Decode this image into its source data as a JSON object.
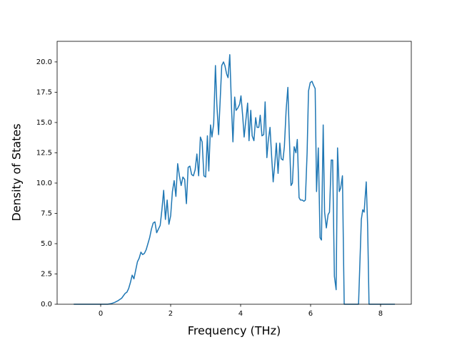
{
  "chart_data": {
    "type": "line",
    "xlabel": "Frequency (THz)",
    "ylabel": "Density of States",
    "color": "#1f77b4",
    "xlim": [
      -1.245,
      8.878
    ],
    "ylim": [
      0,
      21.7
    ],
    "xticks": [
      0,
      2,
      4,
      6,
      8
    ],
    "yticks": [
      {
        "value": 0,
        "label": "0.0"
      },
      {
        "value": 2.5,
        "label": "2.5"
      },
      {
        "value": 5,
        "label": "5.0"
      },
      {
        "value": 7.5,
        "label": "7.5"
      },
      {
        "value": 10,
        "label": "10.0"
      },
      {
        "value": 12.5,
        "label": "12.5"
      },
      {
        "value": 15,
        "label": "15.0"
      },
      {
        "value": 17.5,
        "label": "17.5"
      },
      {
        "value": 20,
        "label": "20.0"
      }
    ],
    "x": [
      -0.77,
      0.2,
      0.3,
      0.4,
      0.5,
      0.6,
      0.7,
      0.75,
      0.8,
      0.85,
      0.9,
      0.95,
      1.0,
      1.05,
      1.1,
      1.15,
      1.2,
      1.25,
      1.3,
      1.35,
      1.4,
      1.45,
      1.5,
      1.55,
      1.6,
      1.65,
      1.7,
      1.75,
      1.8,
      1.85,
      1.9,
      1.95,
      2.0,
      2.05,
      2.1,
      2.15,
      2.2,
      2.25,
      2.3,
      2.35,
      2.4,
      2.45,
      2.5,
      2.55,
      2.6,
      2.65,
      2.7,
      2.75,
      2.8,
      2.85,
      2.9,
      2.95,
      3.0,
      3.05,
      3.09,
      3.14,
      3.18,
      3.23,
      3.28,
      3.32,
      3.37,
      3.41,
      3.46,
      3.51,
      3.55,
      3.6,
      3.64,
      3.69,
      3.74,
      3.78,
      3.83,
      3.87,
      3.92,
      3.97,
      4.01,
      4.06,
      4.1,
      4.15,
      4.2,
      4.24,
      4.29,
      4.33,
      4.38,
      4.43,
      4.47,
      4.52,
      4.56,
      4.61,
      4.66,
      4.7,
      4.75,
      4.79,
      4.84,
      4.89,
      4.93,
      4.98,
      5.02,
      5.07,
      5.12,
      5.16,
      5.21,
      5.25,
      5.3,
      5.35,
      5.39,
      5.44,
      5.48,
      5.53,
      5.58,
      5.62,
      5.67,
      5.71,
      5.76,
      5.81,
      5.85,
      5.9,
      5.94,
      5.99,
      6.04,
      6.08,
      6.13,
      6.17,
      6.22,
      6.27,
      6.31,
      6.36,
      6.4,
      6.45,
      6.5,
      6.54,
      6.59,
      6.63,
      6.68,
      6.73,
      6.77,
      6.82,
      6.86,
      6.91,
      6.96,
      7.37,
      7.45,
      7.49,
      7.53,
      7.59,
      7.63,
      7.67,
      8.41
    ],
    "values": [
      0,
      0,
      0.05,
      0.15,
      0.3,
      0.5,
      0.9,
      1.0,
      1.3,
      1.8,
      2.4,
      2.1,
      2.8,
      3.5,
      3.8,
      4.3,
      4.1,
      4.2,
      4.5,
      5.0,
      5.5,
      6.2,
      6.7,
      6.8,
      5.9,
      6.2,
      6.5,
      7.8,
      9.4,
      7.0,
      8.6,
      6.6,
      7.3,
      9.3,
      10.2,
      8.9,
      11.6,
      10.6,
      9.8,
      10.5,
      10.3,
      8.3,
      11.3,
      11.4,
      10.7,
      10.6,
      11.1,
      12.4,
      10.6,
      13.8,
      13.4,
      10.6,
      10.5,
      13.9,
      11.0,
      14.8,
      13.8,
      14.9,
      19.7,
      16.5,
      14.0,
      16.5,
      19.7,
      20.0,
      19.7,
      19.0,
      18.7,
      20.6,
      16.2,
      13.4,
      17.1,
      16.0,
      16.2,
      16.5,
      17.2,
      15.5,
      13.8,
      15.2,
      16.6,
      13.5,
      16.0,
      13.9,
      13.5,
      15.4,
      14.6,
      14.6,
      15.6,
      13.9,
      14.0,
      16.7,
      12.1,
      13.5,
      14.6,
      12.0,
      10.1,
      11.7,
      13.3,
      10.8,
      13.3,
      12.0,
      11.9,
      13.0,
      16.0,
      17.9,
      14.0,
      9.8,
      10.0,
      13.0,
      12.5,
      13.6,
      8.8,
      8.6,
      8.6,
      8.5,
      8.6,
      12.5,
      17.6,
      18.3,
      18.4,
      18.1,
      17.8,
      9.3,
      12.9,
      5.5,
      5.3,
      14.8,
      7.6,
      6.3,
      7.4,
      7.6,
      11.9,
      11.9,
      2.3,
      1.2,
      12.9,
      9.3,
      9.6,
      10.6,
      0,
      0,
      7.0,
      7.8,
      7.6,
      10.1,
      6.5,
      0,
      0
    ]
  }
}
